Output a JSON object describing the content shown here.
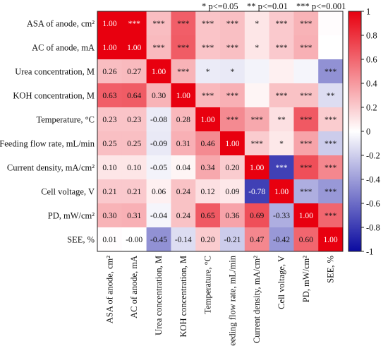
{
  "chart_data": {
    "type": "heatmap",
    "title": "",
    "legend_text": {
      "a": "* p<=0.05",
      "b": "** p<=0.01",
      "c": "*** p<=0.001"
    },
    "rows": [
      "ASA of anode, cm²",
      "AC of anode, mA",
      "Urea concentration, M",
      "KOH concentration, M",
      "Temperature, °C",
      "Feeding flow rate, mL/min",
      "Current density, mA/cm²",
      "Cell voltage, V",
      "PD, mW/cm²",
      "SEE, %"
    ],
    "columns": [
      "ASA of anode, cm²",
      "AC of anode, mA",
      "Urea concentration, M",
      "KOH concentration, M",
      "Temperature, °C",
      "Feeding flow rate, mL/min",
      "Current density, mA/cm²",
      "Cell voltage, V",
      "PD, mW/cm²",
      "SEE, %"
    ],
    "values": [
      [
        1.0,
        1.0,
        0.26,
        0.63,
        0.23,
        0.25,
        0.1,
        0.21,
        0.3,
        0.01
      ],
      [
        1.0,
        1.0,
        0.27,
        0.64,
        0.23,
        0.25,
        0.1,
        0.21,
        0.31,
        -0.0
      ],
      [
        0.26,
        0.27,
        1.0,
        0.3,
        -0.08,
        -0.09,
        -0.05,
        0.06,
        -0.04,
        -0.45
      ],
      [
        0.63,
        0.64,
        0.3,
        1.0,
        0.28,
        0.31,
        0.04,
        0.24,
        0.24,
        -0.14
      ],
      [
        0.23,
        0.23,
        -0.08,
        0.28,
        1.0,
        0.46,
        0.34,
        0.12,
        0.65,
        0.2
      ],
      [
        0.25,
        0.25,
        -0.09,
        0.31,
        0.46,
        1.0,
        0.2,
        0.09,
        0.36,
        -0.21
      ],
      [
        0.1,
        0.1,
        -0.05,
        0.04,
        0.34,
        0.2,
        1.0,
        -0.78,
        0.69,
        0.47
      ],
      [
        0.21,
        0.21,
        0.06,
        0.24,
        0.12,
        0.09,
        -0.78,
        1.0,
        -0.33,
        -0.42
      ],
      [
        0.3,
        0.31,
        -0.04,
        0.24,
        0.65,
        0.36,
        0.69,
        -0.33,
        1.0,
        0.6
      ],
      [
        0.01,
        -0.0,
        -0.45,
        -0.14,
        0.2,
        -0.21,
        0.47,
        -0.42,
        0.6,
        1.0
      ]
    ],
    "cell_labels": [
      [
        "1.00",
        "***",
        "***",
        "***",
        "***",
        "***",
        "*",
        "***",
        "***",
        ""
      ],
      [
        "1.00",
        "1.00",
        "***",
        "***",
        "***",
        "***",
        "*",
        "***",
        "***",
        ""
      ],
      [
        "0.26",
        "0.27",
        "1.00",
        "***",
        "*",
        "*",
        "",
        "",
        "",
        "***"
      ],
      [
        "0.63",
        "0.64",
        "0.30",
        "1.00",
        "***",
        "***",
        "",
        "***",
        "***",
        "**"
      ],
      [
        "0.23",
        "0.23",
        "-0.08",
        "0.28",
        "1.00",
        "***",
        "***",
        "**",
        "***",
        "***"
      ],
      [
        "0.25",
        "0.25",
        "-0.09",
        "0.31",
        "0.46",
        "1.00",
        "***",
        "*",
        "***",
        "***"
      ],
      [
        "0.10",
        "0.10",
        "-0.05",
        "0.04",
        "0.34",
        "0.20",
        "1.00",
        "***",
        "***",
        "***"
      ],
      [
        "0.21",
        "0.21",
        "0.06",
        "0.24",
        "0.12",
        "0.09",
        "-0.78",
        "1.00",
        "***",
        "***"
      ],
      [
        "0.30",
        "0.31",
        "-0.04",
        "0.24",
        "0.65",
        "0.36",
        "0.69",
        "-0.33",
        "1.00",
        "***"
      ],
      [
        "0.01",
        "-0.00",
        "-0.45",
        "-0.14",
        "0.20",
        "-0.21",
        "0.47",
        "-0.42",
        "0.60",
        "1.00"
      ]
    ],
    "colorbar": {
      "min": -1,
      "max": 1,
      "ticks": [
        "1",
        "0.8",
        "0.6",
        "0.4",
        "0.2",
        "0",
        "-0.2",
        "-0.4",
        "-0.6",
        "-0.8",
        "-1"
      ],
      "colors": {
        "negative": "#0a0aa0",
        "zero": "#ffffff",
        "positive": "#e8000f"
      }
    }
  }
}
